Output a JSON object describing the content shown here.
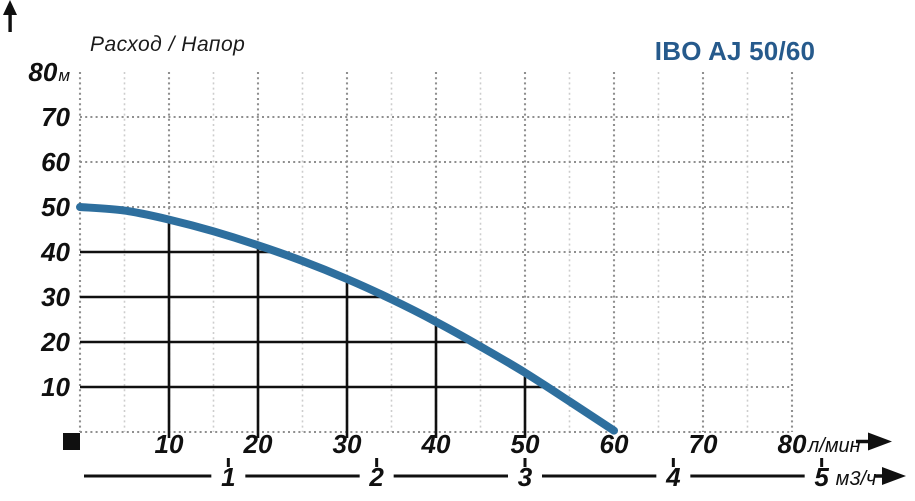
{
  "colors": {
    "curve": "#2e6f9e",
    "title": "#265a8c",
    "grid_major": "#8f8f8f",
    "grid_minor": "#cdcdcd",
    "ink": "#101010"
  },
  "chart_data": {
    "type": "line",
    "title": "IBO AJ 50/60",
    "axis_caption": "Расход / Напор",
    "x_primary": {
      "unit": "л/мин",
      "min": 0,
      "max": 80,
      "ticks": [
        10,
        20,
        30,
        40,
        50,
        60,
        70,
        80
      ]
    },
    "x_secondary": {
      "unit": "м3/ч",
      "ticks": [
        1,
        2,
        3,
        4,
        5
      ],
      "lpm_per_unit": 16.6667
    },
    "y_axis": {
      "unit": "м",
      "min": 0,
      "max": 80,
      "ticks": [
        10,
        20,
        30,
        40,
        50,
        60,
        70,
        80
      ],
      "unit_shown_at": 80
    },
    "grid": {
      "style": "dotted",
      "h_lines": [
        0,
        10,
        20,
        30,
        40,
        50,
        60,
        70
      ],
      "v_major": [
        0,
        10,
        20,
        30,
        40,
        50,
        60,
        70,
        80
      ],
      "v_minor": [
        5,
        15,
        25,
        35,
        45,
        55,
        65,
        75
      ]
    },
    "guides": {
      "horizontal_y": [
        10,
        20,
        30,
        40
      ],
      "vertical_x": [
        10,
        20,
        30,
        40,
        50
      ]
    },
    "series": [
      {
        "name": "IBO AJ 50/60",
        "color": "#2e6f9e",
        "x": [
          0,
          5,
          10,
          15,
          20,
          25,
          30,
          35,
          40,
          45,
          50,
          55,
          60
        ],
        "y": [
          50,
          49.2,
          47.2,
          44.6,
          41.5,
          38,
          34,
          29.5,
          24.5,
          19,
          13.2,
          6.8,
          0.3
        ]
      }
    ]
  }
}
